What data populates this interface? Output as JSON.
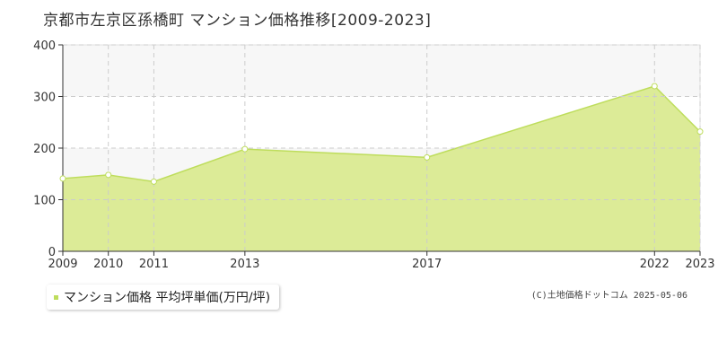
{
  "chart_data": {
    "type": "area",
    "title": "京都市左京区孫橋町 マンション価格推移[2009-2023]",
    "categories": [
      "2009",
      "2010",
      "2011",
      "2013",
      "2017",
      "2022",
      "2023"
    ],
    "series": [
      {
        "name": "マンション価格 平均坪単価(万円/坪)",
        "values": [
          141,
          148,
          135,
          198,
          182,
          320,
          232
        ]
      }
    ],
    "yticks": [
      0,
      100,
      200,
      300,
      400
    ],
    "ylim": [
      0,
      400
    ],
    "grid": true,
    "legend_position": "bottom-left",
    "colors": {
      "fill": "#dceb97",
      "line": "#bedd5c",
      "marker": "#ffffff",
      "band": "#f7f7f7",
      "grid": "#cccccc",
      "axis": "#333333"
    }
  },
  "credit": "(C)土地価格ドットコム 2025-05-06"
}
